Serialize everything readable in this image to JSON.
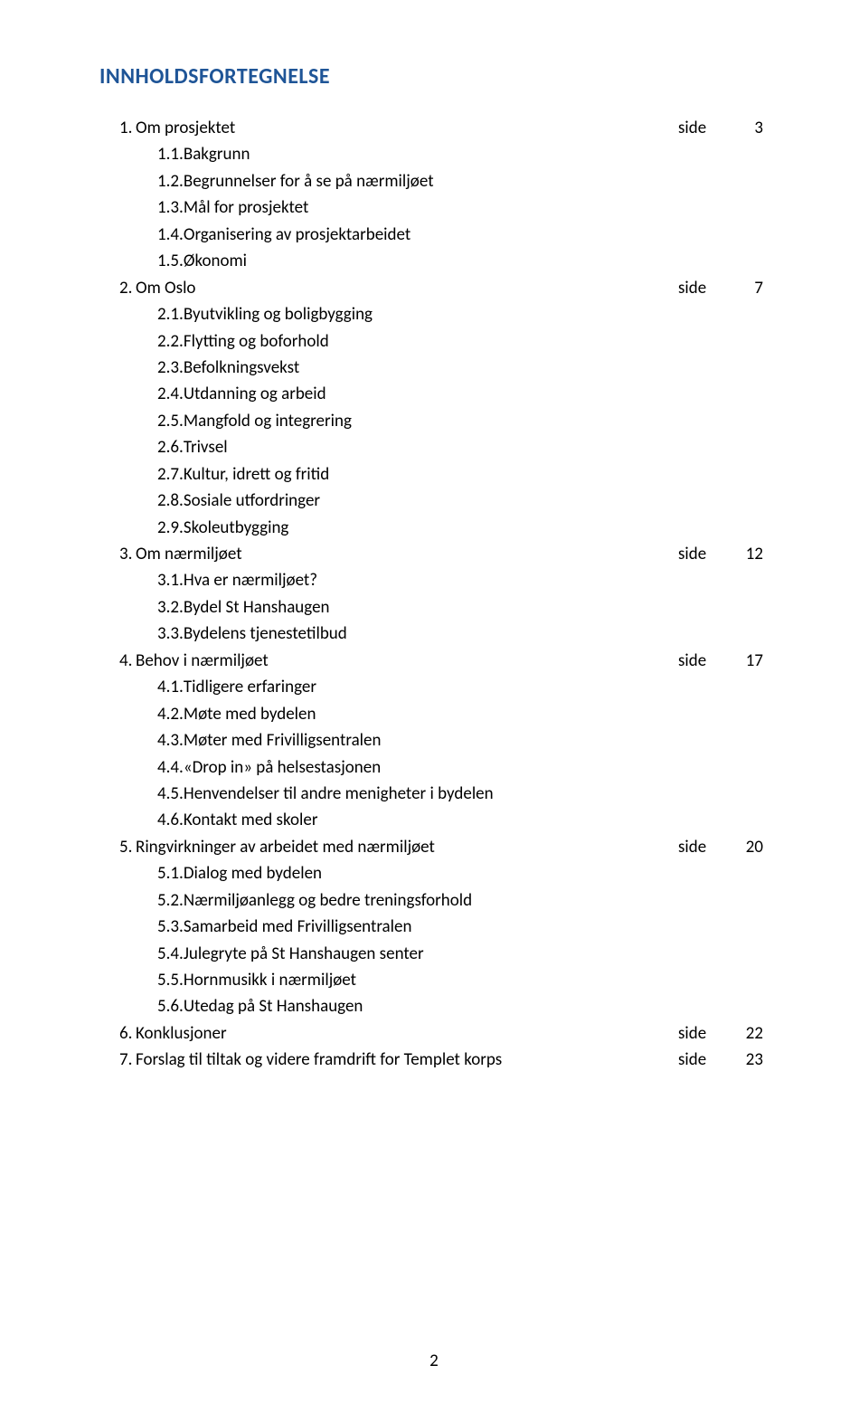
{
  "heading": "INNHOLDSFORTEGNELSE",
  "side_word": "side",
  "footer_page": "2",
  "colors": {
    "title_color": "#1f5597",
    "text_color": "#000000",
    "background": "#ffffff"
  },
  "typography": {
    "title_fontsize_pt": 18,
    "body_fontsize_pt": 14,
    "font_family": "Calibri"
  },
  "toc": [
    {
      "n": "1.",
      "t": "Om prosjektet",
      "p": "3",
      "sub": [
        {
          "n": "1.1.",
          "t": "Bakgrunn"
        },
        {
          "n": "1.2.",
          "t": "Begrunnelser for å se på nærmiljøet"
        },
        {
          "n": "1.3.",
          "t": "Mål for prosjektet"
        },
        {
          "n": "1.4.",
          "t": "Organisering av prosjektarbeidet"
        },
        {
          "n": "1.5.",
          "t": "Økonomi"
        }
      ]
    },
    {
      "n": "2.",
      "t": "Om Oslo",
      "p": "7",
      "sub": [
        {
          "n": "2.1.",
          "t": "Byutvikling og boligbygging"
        },
        {
          "n": "2.2.",
          "t": "Flytting og boforhold"
        },
        {
          "n": "2.3.",
          "t": "Befolkningsvekst"
        },
        {
          "n": "2.4.",
          "t": "Utdanning og arbeid"
        },
        {
          "n": "2.5.",
          "t": "Mangfold og integrering"
        },
        {
          "n": "2.6.",
          "t": "Trivsel"
        },
        {
          "n": "2.7.",
          "t": "Kultur, idrett og fritid"
        },
        {
          "n": "2.8.",
          "t": "Sosiale utfordringer"
        },
        {
          "n": "2.9.",
          "t": "Skoleutbygging"
        }
      ]
    },
    {
      "n": "3.",
      "t": "Om nærmiljøet",
      "p": "12",
      "sub": [
        {
          "n": "3.1.",
          "t": "Hva er nærmiljøet?"
        },
        {
          "n": "3.2.",
          "t": "Bydel St Hanshaugen"
        },
        {
          "n": "3.3.",
          "t": "Bydelens tjenestetilbud"
        }
      ]
    },
    {
      "n": "4.",
      "t": "Behov i nærmiljøet",
      "p": "17",
      "sub": [
        {
          "n": "4.1.",
          "t": "Tidligere erfaringer"
        },
        {
          "n": "4.2.",
          "t": "Møte med bydelen"
        },
        {
          "n": "4.3.",
          "t": "Møter med Frivilligsentralen"
        },
        {
          "n": "4.4.",
          "t": "«Drop in» på helsestasjonen"
        },
        {
          "n": "4.5.",
          "t": "Henvendelser til andre menigheter i bydelen"
        },
        {
          "n": "4.6.",
          "t": "Kontakt med skoler"
        }
      ]
    },
    {
      "n": "5.",
      "t": "Ringvirkninger av arbeidet med nærmiljøet",
      "p": "20",
      "sub": [
        {
          "n": "5.1.",
          "t": "Dialog med bydelen"
        },
        {
          "n": "5.2.",
          "t": "Nærmiljøanlegg og bedre treningsforhold"
        },
        {
          "n": "5.3.",
          "t": "Samarbeid med Frivilligsentralen"
        },
        {
          "n": "5.4.",
          "t": "Julegryte på St Hanshaugen senter"
        },
        {
          "n": "5.5.",
          "t": "Hornmusikk i nærmiljøet"
        },
        {
          "n": "5.6.",
          "t": "Utedag på St Hanshaugen"
        }
      ]
    },
    {
      "n": "6.",
      "t": "Konklusjoner",
      "p": "22",
      "sub": []
    },
    {
      "n": "7.",
      "t": "Forslag til tiltak og videre framdrift for Templet korps",
      "p": "23",
      "sub": []
    }
  ]
}
